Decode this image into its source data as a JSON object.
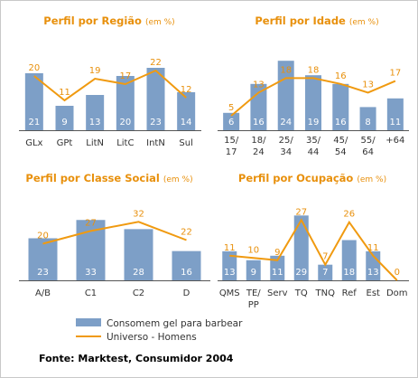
{
  "chart_data": [
    {
      "type": "bar",
      "title": "Perfil por Região",
      "title_unit": "(em %)",
      "categories": [
        "GLx",
        "GPt",
        "LitN",
        "LitC",
        "IntN",
        "Sul"
      ],
      "series": [
        {
          "name": "Consomem gel para barbear",
          "type": "bar",
          "values": [
            21,
            9,
            13,
            20,
            23,
            14
          ]
        },
        {
          "name": "Universo - Homens",
          "type": "line",
          "values": [
            20,
            11,
            19,
            17,
            22,
            12
          ]
        }
      ],
      "ylim": [
        0,
        32
      ]
    },
    {
      "type": "bar",
      "title": "Perfil por Idade",
      "title_unit": "(em %)",
      "categories": [
        "15/\n17",
        "18/\n24",
        "25/\n34",
        "35/\n44",
        "45/\n54",
        "55/\n64",
        "+64"
      ],
      "series": [
        {
          "name": "Consomem gel para barbear",
          "type": "bar",
          "values": [
            6,
            16,
            24,
            19,
            16,
            8,
            11
          ]
        },
        {
          "name": "Universo - Homens",
          "type": "line",
          "values": [
            5,
            13,
            18,
            18,
            16,
            13,
            17
          ]
        }
      ],
      "ylim": [
        0,
        30
      ]
    },
    {
      "type": "bar",
      "title": "Perfil por Classe Social",
      "title_unit": "(em %)",
      "categories": [
        "A/B",
        "C1",
        "C2",
        "D"
      ],
      "series": [
        {
          "name": "Consomem gel para barbear",
          "type": "bar",
          "values": [
            23,
            33,
            28,
            16
          ]
        },
        {
          "name": "Universo - Homens",
          "type": "line",
          "values": [
            20,
            27,
            32,
            22
          ]
        }
      ],
      "ylim": [
        0,
        44
      ]
    },
    {
      "type": "bar",
      "title": "Perfil por Ocupação",
      "title_unit": "(em %)",
      "categories": [
        "QMS",
        "TE/\nPP",
        "Serv",
        "TQ",
        "TNQ",
        "Ref",
        "Est",
        "Dom"
      ],
      "series": [
        {
          "name": "Consomem gel para barbear",
          "type": "bar",
          "values": [
            13,
            9,
            11,
            29,
            7,
            18,
            13,
            0
          ]
        },
        {
          "name": "Universo - Homens",
          "type": "line",
          "values": [
            11,
            10,
            9,
            27,
            7,
            26,
            11,
            0
          ]
        }
      ],
      "ylim": [
        0,
        36
      ]
    }
  ],
  "legend": {
    "bar_label": "Consomem gel para barbear",
    "line_label": "Universo - Homens",
    "bar_color": "#7d9fc7",
    "line_color": "#f09a10"
  },
  "source": {
    "label": "Fonte:",
    "text": " Marktest, Consumidor 2004"
  }
}
